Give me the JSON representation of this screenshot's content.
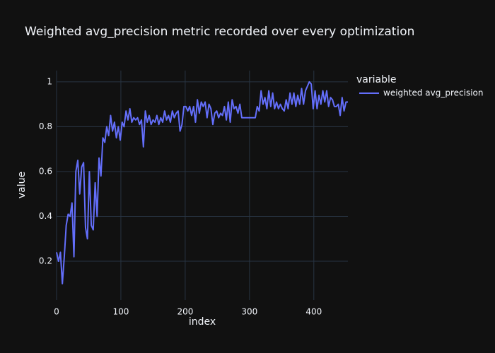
{
  "chart_data": {
    "type": "line",
    "title": "Weighted avg_precision metric recorded over every optimization",
    "x_label": "index",
    "y_label": "value",
    "legend_title": "variable",
    "x": [
      0,
      3,
      6,
      9,
      12,
      15,
      18,
      21,
      24,
      27,
      30,
      33,
      36,
      39,
      42,
      45,
      48,
      51,
      54,
      57,
      60,
      63,
      66,
      69,
      72,
      75,
      78,
      81,
      84,
      87,
      90,
      93,
      96,
      99,
      102,
      105,
      108,
      111,
      114,
      117,
      120,
      123,
      126,
      129,
      132,
      135,
      138,
      141,
      144,
      147,
      150,
      153,
      156,
      159,
      162,
      165,
      168,
      171,
      174,
      177,
      180,
      183,
      186,
      189,
      192,
      195,
      198,
      201,
      204,
      207,
      210,
      213,
      216,
      219,
      222,
      225,
      228,
      231,
      234,
      237,
      240,
      243,
      246,
      249,
      252,
      255,
      258,
      261,
      264,
      267,
      270,
      273,
      276,
      279,
      282,
      285,
      288,
      291,
      294,
      297,
      300,
      303,
      306,
      309,
      312,
      315,
      318,
      321,
      324,
      327,
      330,
      333,
      336,
      339,
      342,
      345,
      348,
      351,
      354,
      357,
      360,
      363,
      366,
      369,
      372,
      375,
      378,
      381,
      384,
      387,
      390,
      393,
      396,
      399,
      402,
      405,
      408,
      411,
      414,
      417,
      420,
      423,
      426,
      429,
      432,
      435,
      438,
      441,
      444,
      447,
      450,
      453
    ],
    "series": [
      {
        "name": "weighted avg_precision",
        "color": "#636efa",
        "values": [
          0.24,
          0.2,
          0.24,
          0.1,
          0.22,
          0.36,
          0.41,
          0.4,
          0.46,
          0.22,
          0.6,
          0.65,
          0.5,
          0.62,
          0.64,
          0.35,
          0.3,
          0.6,
          0.36,
          0.34,
          0.55,
          0.4,
          0.66,
          0.58,
          0.75,
          0.73,
          0.8,
          0.76,
          0.85,
          0.78,
          0.82,
          0.75,
          0.8,
          0.74,
          0.82,
          0.8,
          0.87,
          0.83,
          0.88,
          0.82,
          0.84,
          0.83,
          0.84,
          0.81,
          0.83,
          0.71,
          0.87,
          0.82,
          0.85,
          0.81,
          0.83,
          0.82,
          0.85,
          0.81,
          0.84,
          0.82,
          0.87,
          0.83,
          0.85,
          0.82,
          0.87,
          0.84,
          0.86,
          0.87,
          0.78,
          0.81,
          0.89,
          0.89,
          0.87,
          0.89,
          0.85,
          0.89,
          0.82,
          0.92,
          0.86,
          0.91,
          0.89,
          0.91,
          0.84,
          0.9,
          0.88,
          0.81,
          0.86,
          0.87,
          0.84,
          0.86,
          0.85,
          0.89,
          0.83,
          0.91,
          0.82,
          0.92,
          0.88,
          0.89,
          0.86,
          0.9,
          0.84,
          0.84,
          0.84,
          0.84,
          0.84,
          0.84,
          0.84,
          0.84,
          0.89,
          0.87,
          0.96,
          0.9,
          0.93,
          0.88,
          0.96,
          0.89,
          0.95,
          0.88,
          0.91,
          0.88,
          0.9,
          0.88,
          0.87,
          0.92,
          0.88,
          0.95,
          0.9,
          0.95,
          0.89,
          0.94,
          0.9,
          0.97,
          0.9,
          0.96,
          0.98,
          1,
          0.99,
          0.88,
          0.96,
          0.88,
          0.94,
          0.9,
          0.96,
          0.91,
          0.96,
          0.89,
          0.93,
          0.92,
          0.89,
          0.89,
          0.9,
          0.85,
          0.93,
          0.87,
          0.91,
          0.91
        ]
      }
    ],
    "xlim": [
      0,
      453
    ],
    "ylim": [
      0.027,
      1.05
    ],
    "xticks": [
      0,
      100,
      200,
      300,
      400
    ],
    "yticks": [
      0.2,
      0.4,
      0.6,
      0.8,
      1
    ],
    "grid": true,
    "legend": "right"
  }
}
